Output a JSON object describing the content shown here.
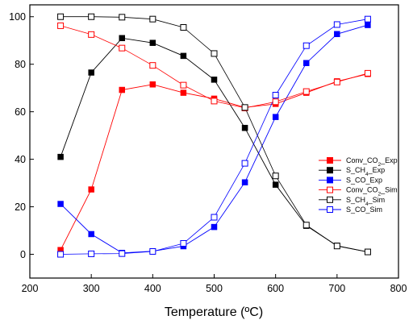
{
  "chart_data": {
    "type": "line",
    "xlabel": "Temperature (ºC)",
    "ylabel": "",
    "xlim": [
      200,
      800
    ],
    "ylim": [
      -10,
      105
    ],
    "xticks": [
      200,
      300,
      400,
      500,
      600,
      700,
      800
    ],
    "yticks": [
      0,
      20,
      40,
      60,
      80,
      100
    ],
    "grid": false,
    "legend_position": "center-right",
    "x": [
      250,
      300,
      350,
      400,
      450,
      500,
      550,
      600,
      650,
      700,
      750
    ],
    "series": [
      {
        "name": "Conv_CO2_Exp",
        "legend": [
          "Conv_CO",
          "2",
          "_Exp"
        ],
        "color": "#ff0000",
        "marker": "filled",
        "values": [
          1.8,
          27.3,
          69.2,
          71.5,
          68,
          65.5,
          61.8,
          63.3,
          68,
          72.8,
          75.9
        ]
      },
      {
        "name": "S_CH4_Exp",
        "legend": [
          "S_CH",
          "4",
          "_Exp"
        ],
        "color": "#000000",
        "marker": "filled",
        "values": [
          41,
          76.5,
          91,
          89,
          83.5,
          73.5,
          53.2,
          29.3,
          12,
          3.6,
          1
        ]
      },
      {
        "name": "S_CO_Exp",
        "legend": [
          "S_CO_Exp"
        ],
        "color": "#0000ff",
        "marker": "filled",
        "values": [
          21.2,
          8.5,
          0.6,
          1.3,
          3.4,
          11.5,
          30.3,
          57.8,
          80.5,
          92.7,
          96.5
        ]
      },
      {
        "name": "Conv_CO2_Sim",
        "legend": [
          "Conv_CO",
          "2",
          "_Sim"
        ],
        "color": "#ff0000",
        "marker": "open",
        "values": [
          96.2,
          92.5,
          86.8,
          79.5,
          71.2,
          64.5,
          61.6,
          64.2,
          68.5,
          72.5,
          76.2
        ]
      },
      {
        "name": "S_CH4_Sim",
        "legend": [
          "S_CH",
          "4",
          "_Sim"
        ],
        "color": "#000000",
        "marker": "open",
        "values": [
          100,
          100,
          99.8,
          99,
          95.5,
          84.5,
          61.8,
          33,
          12.3,
          3.5,
          1
        ]
      },
      {
        "name": "S_CO_Sim",
        "legend": [
          "S_CO_Sim"
        ],
        "color": "#0000ff",
        "marker": "open",
        "values": [
          0,
          0.2,
          0.3,
          1.2,
          4.6,
          15.6,
          38.3,
          67,
          87.8,
          96.7,
          99
        ]
      }
    ]
  }
}
